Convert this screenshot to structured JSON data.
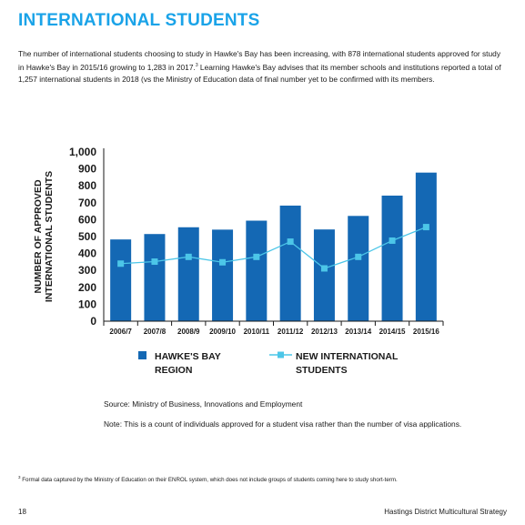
{
  "heading": "INTERNATIONAL STUDENTS",
  "intro": {
    "text_before_sup": "The number of international students choosing to study in Hawke's Bay has been increasing, with 878 international students approved for study in Hawke's Bay in 2015/16 growing to 1,283 in 2017.",
    "sup": "3",
    "text_after_sup": " Learning Hawke's Bay advises that its member schools and institutions reported a total of 1,257 international students in 2018 (vs the Ministry of Education data of final number yet to be confirmed with its members."
  },
  "chart_data": {
    "type": "bar",
    "ylabel_line1": "NUMBER OF APPROVED",
    "ylabel_line2": "INTERNATIONAL STUDENTS",
    "categories": [
      "2006/7",
      "2007/8",
      "2008/9",
      "2009/10",
      "2010/11",
      "2011/12",
      "2012/13",
      "2013/14",
      "2014/15",
      "2015/16"
    ],
    "yticks": [
      "0",
      "100",
      "200",
      "300",
      "400",
      "500",
      "600",
      "700",
      "800",
      "900",
      "1,000"
    ],
    "ylim": [
      0,
      1000
    ],
    "series": [
      {
        "name": "HAWKE'S BAY REGION",
        "kind": "bar",
        "color": "#1468b4",
        "values": [
          483,
          515,
          555,
          541,
          594,
          683,
          542,
          622,
          742,
          878
        ]
      },
      {
        "name": "NEW INTERNATIONAL STUDENTS",
        "kind": "line",
        "color": "#4cc6e8",
        "values": [
          340,
          352,
          380,
          348,
          380,
          470,
          312,
          380,
          476,
          556
        ]
      }
    ],
    "legend": {
      "bar_line1": "HAWKE'S BAY",
      "bar_line2": "REGION",
      "line_line1": "NEW INTERNATIONAL",
      "line_line2": "STUDENTS",
      "placement": "bottom"
    },
    "grid": false
  },
  "source": "Source: Ministry of Business, Innovations and Employment",
  "note": "Note: This is a count of individuals approved for a student visa rather than the number of visa applications.",
  "footnote": {
    "sup": "3",
    "text": " Formal data captured by the Ministry of Education on their ENROL system, which does not include groups of students coming here to study short-term."
  },
  "page_number": "18",
  "footer_title": "Hastings District Multicultural Strategy"
}
